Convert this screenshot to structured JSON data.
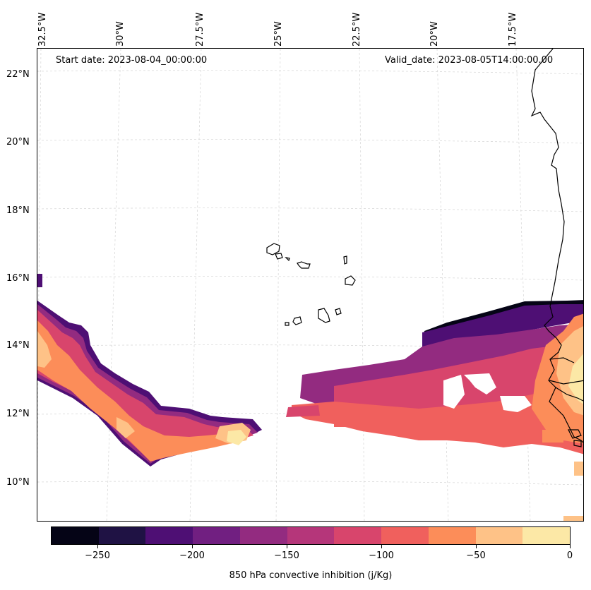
{
  "header": {
    "start_date": "Start date: 2023-08-04_00:00:00",
    "valid_date": "Valid_date: 2023-08-05T14:00:00.00"
  },
  "lon_labels": [
    "32.5°W",
    "30°W",
    "27.5°W",
    "25°W",
    "22.5°W",
    "20°W",
    "17.5°W"
  ],
  "lat_labels": [
    "22°N",
    "20°N",
    "18°N",
    "16°N",
    "14°N",
    "12°N",
    "10°N"
  ],
  "colorbar": {
    "title": "850 hPa convective inhibition (j/Kg)",
    "tick_labels": [
      "−250",
      "−200",
      "−150",
      "−100",
      "−50",
      "0"
    ],
    "colors": [
      "#050416",
      "#1f1244",
      "#4e0f74",
      "#711f81",
      "#932b80",
      "#b5367a",
      "#d8456c",
      "#f0605d",
      "#fc8d59",
      "#fec287",
      "#fce8a6"
    ]
  }
}
